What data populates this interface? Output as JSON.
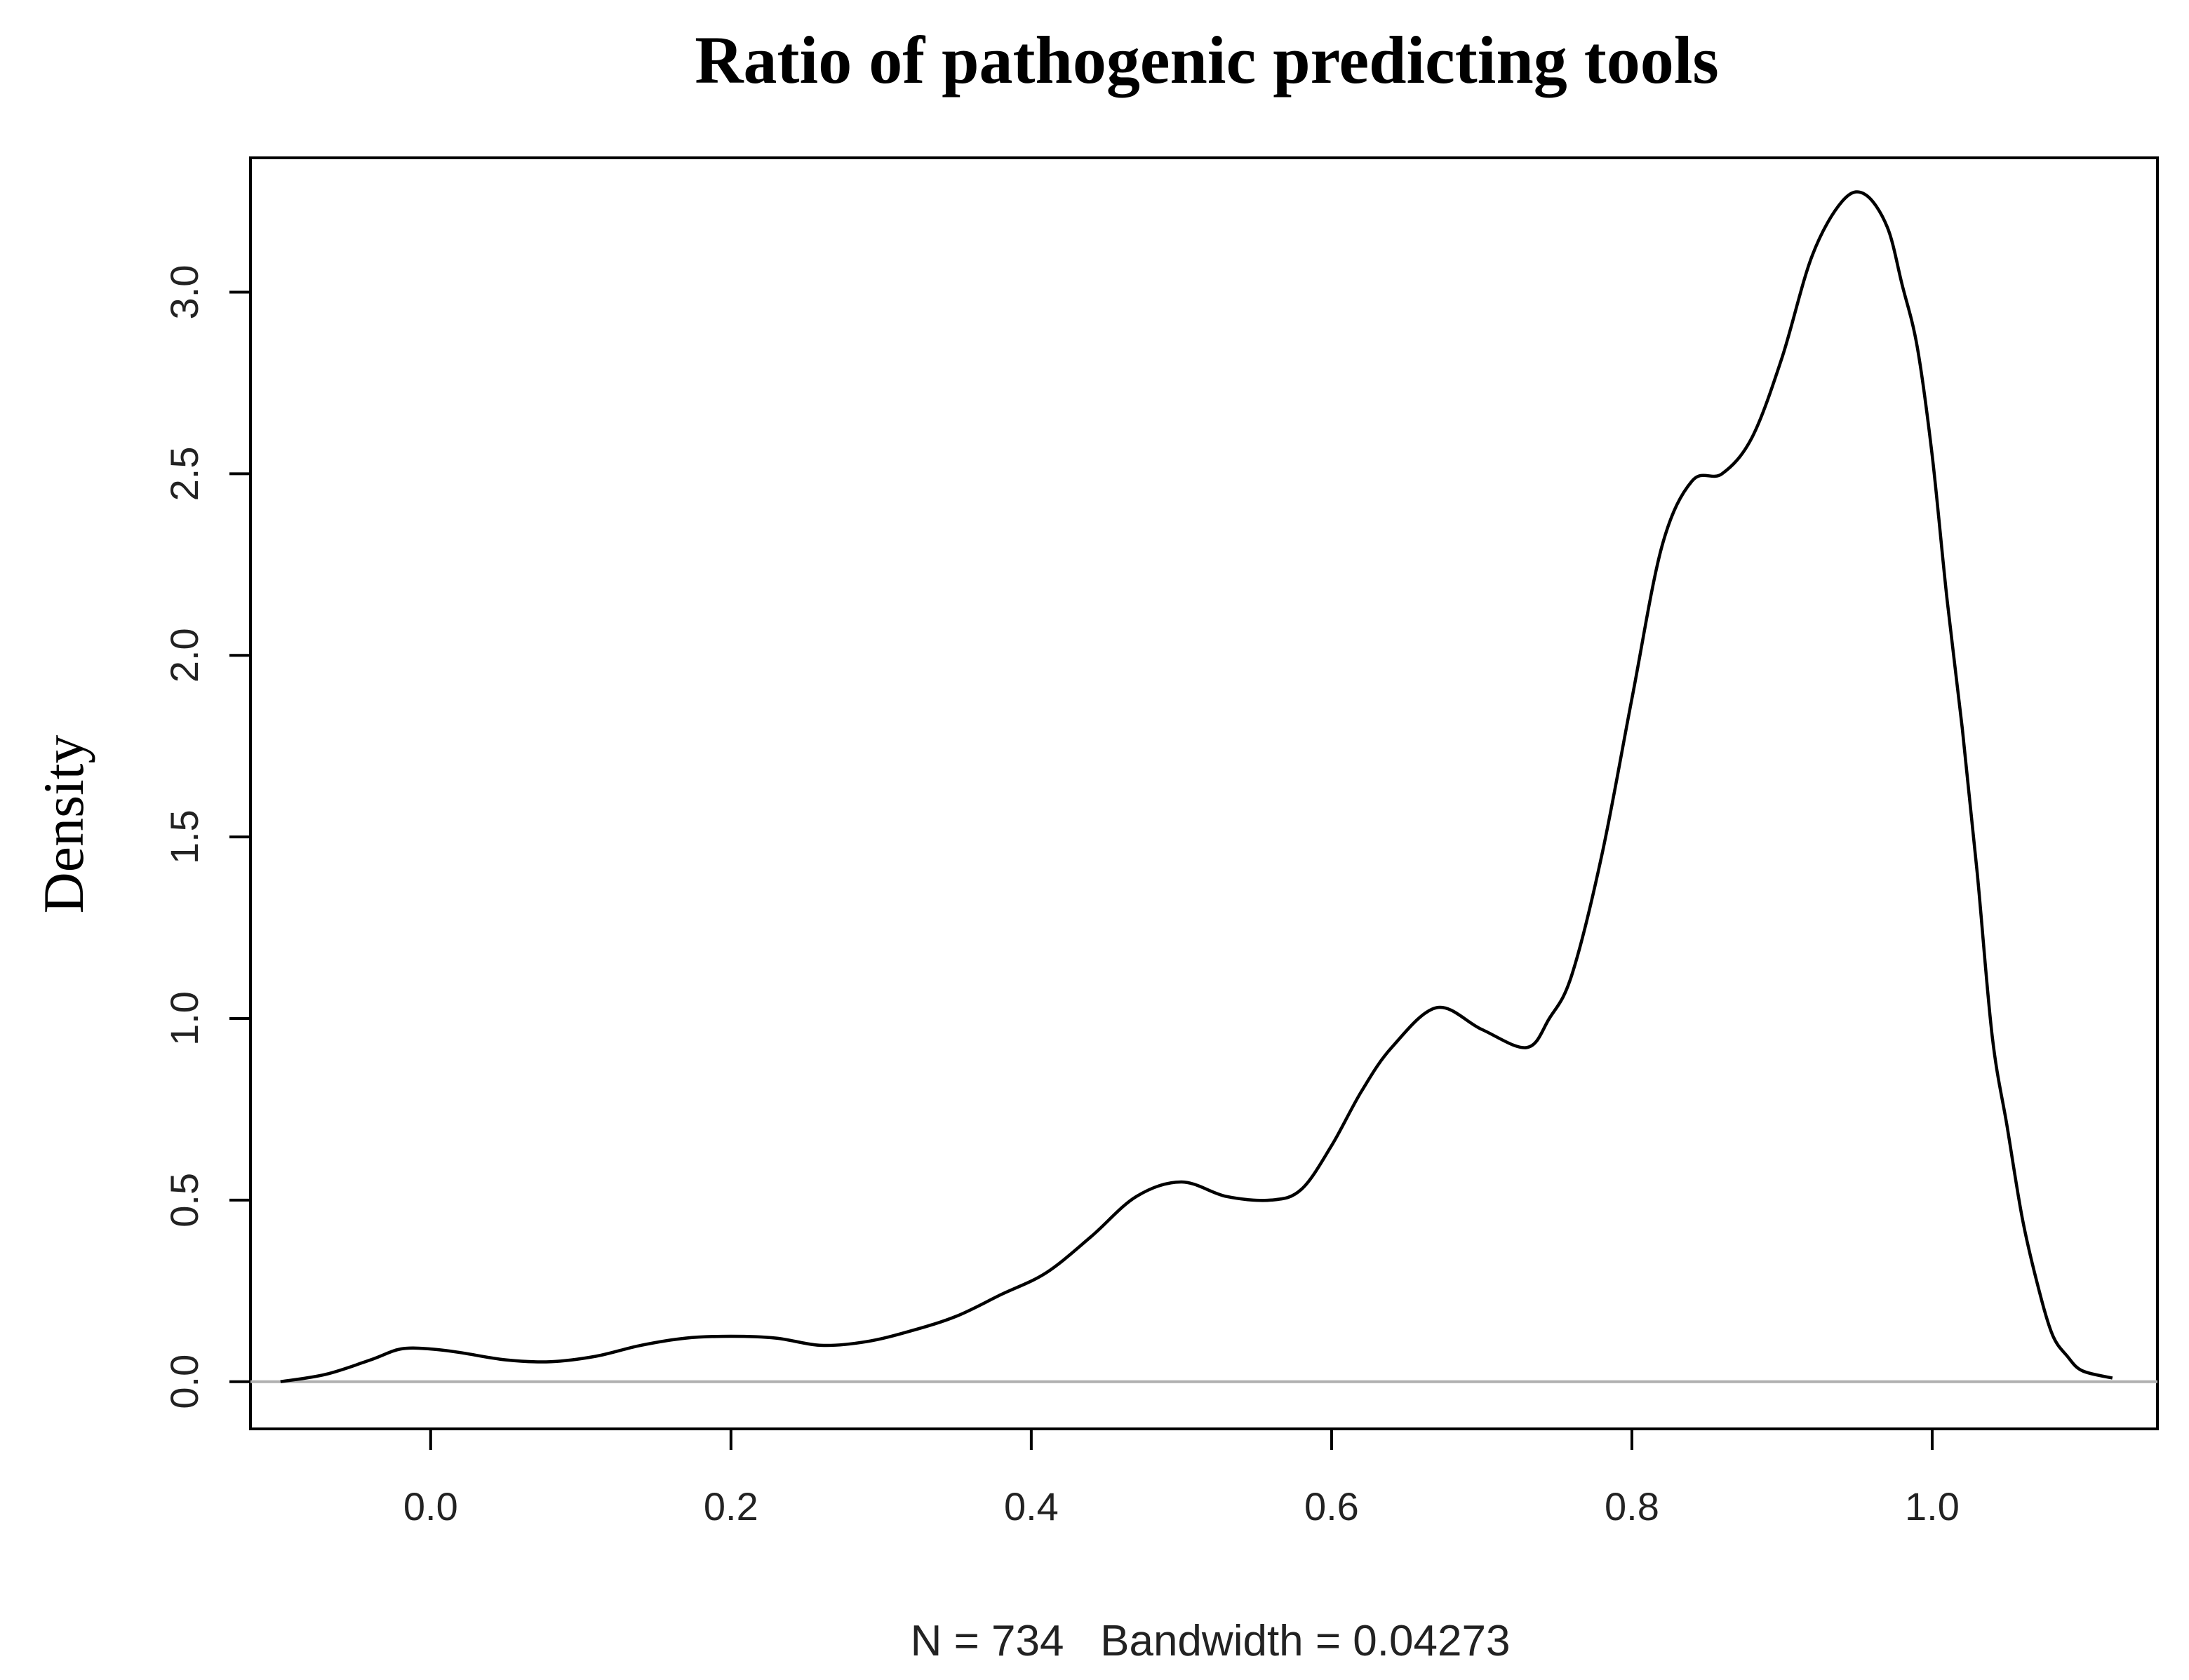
{
  "chart_data": {
    "type": "line",
    "title": "Ratio of pathogenic predicting tools",
    "xlabel": "N = 734   Bandwidth = 0.04273",
    "ylabel": "Density",
    "xlim": [
      -0.12,
      1.15
    ],
    "ylim": [
      -0.13,
      3.37
    ],
    "x_ticks": [
      0.0,
      0.2,
      0.4,
      0.6,
      0.8,
      1.0
    ],
    "x_tick_labels": [
      "0.0",
      "0.2",
      "0.4",
      "0.6",
      "0.8",
      "1.0"
    ],
    "y_ticks": [
      0.0,
      0.5,
      1.0,
      1.5,
      2.0,
      2.5,
      3.0
    ],
    "y_tick_labels": [
      "0.0",
      "0.5",
      "1.0",
      "1.5",
      "2.0",
      "2.5",
      "3.0"
    ],
    "baseline": 0,
    "colors": {
      "line": "#000000",
      "baseline": "#b0b0b0",
      "axes": "#000000"
    },
    "series": [
      {
        "x": [
          -0.1,
          -0.07,
          -0.04,
          -0.02,
          0.0,
          0.02,
          0.05,
          0.08,
          0.11,
          0.14,
          0.17,
          0.2,
          0.23,
          0.26,
          0.29,
          0.32,
          0.35,
          0.38,
          0.41,
          0.44,
          0.47,
          0.5,
          0.53,
          0.56,
          0.58,
          0.6,
          0.62,
          0.64,
          0.67,
          0.7,
          0.73,
          0.745,
          0.76,
          0.78,
          0.8,
          0.82,
          0.84,
          0.86,
          0.88,
          0.9,
          0.92,
          0.94,
          0.955,
          0.97,
          0.98,
          0.99,
          1.0,
          1.01,
          1.02,
          1.03,
          1.04,
          1.05,
          1.06,
          1.07,
          1.08,
          1.09,
          1.1,
          1.12
        ],
        "y": [
          0.0,
          0.02,
          0.06,
          0.09,
          0.09,
          0.08,
          0.06,
          0.055,
          0.07,
          0.1,
          0.12,
          0.125,
          0.12,
          0.1,
          0.11,
          0.14,
          0.18,
          0.24,
          0.3,
          0.4,
          0.51,
          0.55,
          0.51,
          0.5,
          0.53,
          0.65,
          0.8,
          0.92,
          1.03,
          0.97,
          0.92,
          1.0,
          1.12,
          1.45,
          1.88,
          2.3,
          2.48,
          2.5,
          2.6,
          2.82,
          3.1,
          3.25,
          3.27,
          3.18,
          3.02,
          2.85,
          2.55,
          2.15,
          1.8,
          1.4,
          0.95,
          0.7,
          0.45,
          0.27,
          0.13,
          0.07,
          0.03,
          0.01
        ]
      }
    ]
  }
}
